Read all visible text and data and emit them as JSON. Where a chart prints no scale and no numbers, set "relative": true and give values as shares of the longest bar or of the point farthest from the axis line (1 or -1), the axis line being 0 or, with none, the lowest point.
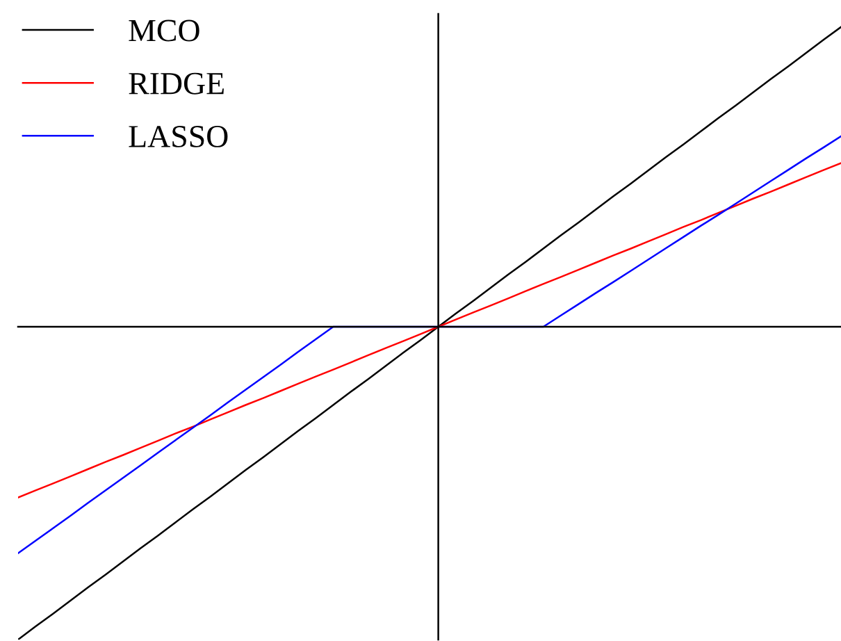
{
  "chart_data": {
    "type": "line",
    "relative": true,
    "legend": "top left",
    "categories": [
      null,
      null,
      null,
      null,
      null,
      null,
      null,
      null,
      null,
      null,
      null,
      null,
      null,
      null,
      null,
      null,
      null,
      null,
      null,
      null,
      null,
      null,
      null,
      null,
      null,
      null,
      null,
      null,
      null,
      null,
      null,
      null,
      null,
      null,
      null,
      null,
      null,
      null,
      null,
      null,
      null,
      null,
      null,
      null,
      null,
      null,
      null,
      null
    ],
    "series": [
      {
        "name": "MCO",
        "color": "#000000",
        "values": [
          -1.0,
          -0.958,
          -0.917,
          -0.875,
          -0.833,
          -0.792,
          -0.75,
          -0.708,
          -0.667,
          -0.625,
          -0.583,
          -0.542,
          -0.5,
          -0.458,
          -0.417,
          -0.375,
          -0.333,
          -0.292,
          -0.25,
          -0.208,
          -0.167,
          -0.125,
          -0.083,
          -0.042,
          0,
          0.042,
          0.083,
          0.125,
          0.167,
          0.208,
          0.25,
          0.292,
          0.333,
          0.375,
          0.417,
          0.458,
          0.5,
          0.542,
          0.583,
          0.625,
          0.667,
          0.708,
          0.75,
          0.792,
          0.833,
          0.875,
          0.917,
          0.958
        ]
      },
      {
        "name": "RIDGE",
        "color": "#ff0000",
        "values": [
          -0.546,
          -0.523,
          -0.501,
          -0.478,
          -0.455,
          -0.432,
          -0.41,
          -0.387,
          -0.364,
          -0.341,
          -0.319,
          -0.296,
          -0.273,
          -0.25,
          -0.228,
          -0.205,
          -0.182,
          -0.159,
          -0.137,
          -0.114,
          -0.091,
          -0.068,
          -0.046,
          -0.023,
          0,
          0.023,
          0.046,
          0.068,
          0.091,
          0.114,
          0.137,
          0.159,
          0.182,
          0.205,
          0.228,
          0.25,
          0.273,
          0.296,
          0.319,
          0.341,
          0.364,
          0.387,
          0.41,
          0.432,
          0.455,
          0.478,
          0.501,
          0.523
        ]
      },
      {
        "name": "LASSO",
        "color": "#0000ff",
        "values": [
          -0.724,
          -0.684,
          -0.644,
          -0.604,
          -0.563,
          -0.523,
          -0.483,
          -0.443,
          -0.402,
          -0.362,
          -0.322,
          -0.282,
          -0.241,
          -0.201,
          -0.161,
          -0.121,
          -0.08,
          -0.04,
          0,
          0,
          0,
          0,
          0,
          0,
          0,
          0,
          0,
          0,
          0,
          0,
          0,
          0.036,
          0.072,
          0.108,
          0.143,
          0.179,
          0.215,
          0.251,
          0.287,
          0.323,
          0.358,
          0.394,
          0.43,
          0.466,
          0.502,
          0.538,
          0.573,
          0.609
        ]
      }
    ]
  }
}
